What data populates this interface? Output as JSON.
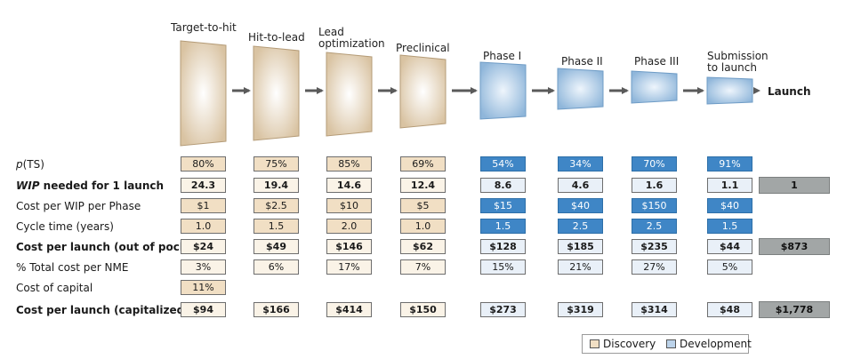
{
  "stages": [
    {
      "label": "Target-to-hit",
      "phase": "discovery"
    },
    {
      "label": "Hit-to-lead",
      "phase": "discovery"
    },
    {
      "label": "Lead\noptimization",
      "phase": "discovery"
    },
    {
      "label": "Preclinical",
      "phase": "discovery"
    },
    {
      "label": "Phase I",
      "phase": "development"
    },
    {
      "label": "Phase II",
      "phase": "development"
    },
    {
      "label": "Phase III",
      "phase": "development"
    },
    {
      "label": "Submission\nto launch",
      "phase": "development"
    }
  ],
  "launch_label": "Launch",
  "colors": {
    "discovery_fill": "#d9c3a2",
    "development_fill": "#8fb6da",
    "arrow": "#5a5a5a",
    "total_cell": "#a2a6a6"
  },
  "rows": [
    {
      "label_prefix": "p",
      "label": "(TS)",
      "style": "normal",
      "values": [
        "80%",
        "75%",
        "85%",
        "69%",
        "54%",
        "34%",
        "70%",
        "91%"
      ],
      "total": ""
    },
    {
      "label_prefix": "WIP",
      "label": " needed for 1 launch",
      "style": "bold",
      "values": [
        "24.3",
        "19.4",
        "14.6",
        "12.4",
        "8.6",
        "4.6",
        "1.6",
        "1.1"
      ],
      "total": "1"
    },
    {
      "label_prefix": "",
      "label": "Cost per WIP per Phase",
      "style": "normal",
      "values": [
        "$1",
        "$2.5",
        "$10",
        "$5",
        "$15",
        "$40",
        "$150",
        "$40"
      ],
      "total": ""
    },
    {
      "label_prefix": "",
      "label": "Cycle time (years)",
      "style": "normal",
      "values": [
        "1.0",
        "1.5",
        "2.0",
        "1.0",
        "1.5",
        "2.5",
        "2.5",
        "1.5"
      ],
      "total": ""
    },
    {
      "label_prefix": "",
      "label": "Cost per launch (out of pocket)",
      "style": "bold",
      "values": [
        "$24",
        "$49",
        "$146",
        "$62",
        "$128",
        "$185",
        "$235",
        "$44"
      ],
      "total": "$873"
    },
    {
      "label_prefix": "",
      "label": "% Total cost per NME",
      "style": "normal",
      "values": [
        "3%",
        "6%",
        "17%",
        "7%",
        "15%",
        "21%",
        "27%",
        "5%"
      ],
      "total": ""
    },
    {
      "label_prefix": "",
      "label": "Cost of capital",
      "style": "normal",
      "values": [
        "11%",
        "",
        "",
        "",
        "",
        "",
        "",
        ""
      ],
      "total": ""
    },
    {
      "label_prefix": "",
      "label": "Cost per launch (capitalized)",
      "style": "bold",
      "values": [
        "$94",
        "$166",
        "$414",
        "$150",
        "$273",
        "$319",
        "$314",
        "$48"
      ],
      "total": "$1,778"
    }
  ],
  "legend": {
    "discovery": "Discovery",
    "development": "Development"
  }
}
